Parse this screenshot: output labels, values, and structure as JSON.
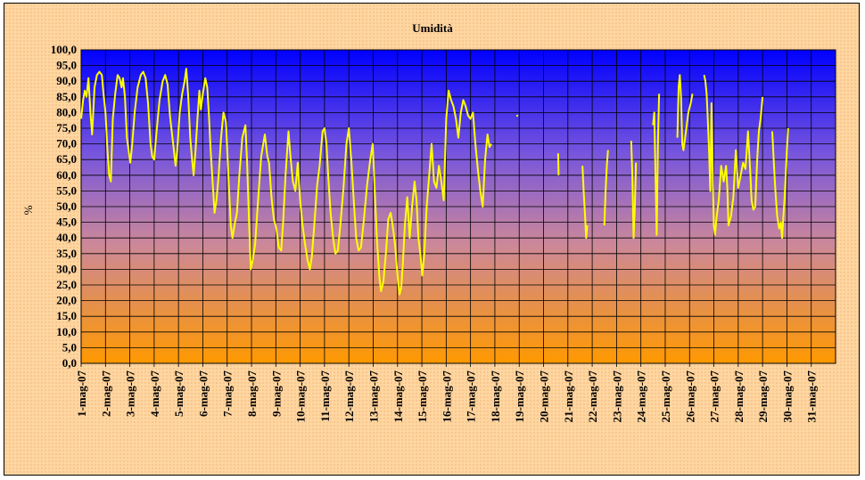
{
  "chart_data": {
    "type": "line",
    "title": "Umidità",
    "xlabel": "",
    "ylabel": "%",
    "ylim": [
      0,
      100
    ],
    "ytick_step": 5,
    "y_tick_labels": [
      "0,0",
      "5,0",
      "10,0",
      "15,0",
      "20,0",
      "25,0",
      "30,0",
      "35,0",
      "40,0",
      "45,0",
      "50,0",
      "55,0",
      "60,0",
      "65,0",
      "70,0",
      "75,0",
      "80,0",
      "85,0",
      "90,0",
      "95,0",
      "100,0"
    ],
    "categories": [
      "1-mag-07",
      "2-mag-07",
      "3-mag-07",
      "4-mag-07",
      "5-mag-07",
      "6-mag-07",
      "7-mag-07",
      "8-mag-07",
      "9-mag-07",
      "10-mag-07",
      "11-mag-07",
      "12-mag-07",
      "13-mag-07",
      "14-mag-07",
      "15-mag-07",
      "16-mag-07",
      "17-mag-07",
      "18-mag-07",
      "19-mag-07",
      "20-mag-07",
      "21-mag-07",
      "22-mag-07",
      "23-mag-07",
      "24-mag-07",
      "25-mag-07",
      "26-mag-07",
      "27-mag-07",
      "28-mag-07",
      "29-mag-07",
      "30-mag-07",
      "31-mag-07"
    ],
    "grid": true,
    "plot_background": "vertical gradient blue (top) to orange (bottom)",
    "colors": {
      "line": "#ffff00",
      "plot_top": "#0000ff",
      "plot_upper": "#7755dd",
      "plot_mid": "#cc8899",
      "plot_bottom": "#ff9900",
      "frame": "#ffd6a0",
      "grid": "#000000"
    },
    "series": [
      {
        "x_day_offset_and_value_segments": [
          [
            [
              0.0,
              78
            ],
            [
              0.08,
              84
            ],
            [
              0.15,
              87
            ],
            [
              0.22,
              85
            ],
            [
              0.3,
              91
            ],
            [
              0.38,
              80
            ],
            [
              0.45,
              73
            ],
            [
              0.55,
              88
            ],
            [
              0.65,
              92
            ],
            [
              0.75,
              93
            ],
            [
              0.85,
              92
            ],
            [
              0.92,
              86
            ],
            [
              1.0,
              80
            ],
            [
              1.08,
              68
            ],
            [
              1.15,
              60
            ],
            [
              1.22,
              58
            ],
            [
              1.3,
              78
            ],
            [
              1.4,
              86
            ],
            [
              1.5,
              92
            ],
            [
              1.58,
              91
            ],
            [
              1.66,
              88
            ],
            [
              1.72,
              91
            ],
            [
              1.8,
              85
            ],
            [
              1.88,
              72
            ],
            [
              1.95,
              68
            ],
            [
              2.02,
              64
            ],
            [
              2.1,
              70
            ],
            [
              2.2,
              80
            ],
            [
              2.32,
              88
            ],
            [
              2.45,
              92
            ],
            [
              2.55,
              93
            ],
            [
              2.65,
              91
            ],
            [
              2.75,
              83
            ],
            [
              2.85,
              70
            ],
            [
              2.92,
              66
            ],
            [
              3.0,
              65
            ],
            [
              3.1,
              74
            ],
            [
              3.22,
              84
            ],
            [
              3.35,
              90
            ],
            [
              3.45,
              92
            ],
            [
              3.55,
              89
            ],
            [
              3.65,
              79
            ],
            [
              3.78,
              70
            ],
            [
              3.88,
              63
            ],
            [
              3.95,
              68
            ],
            [
              4.05,
              80
            ],
            [
              4.15,
              86
            ],
            [
              4.25,
              90
            ],
            [
              4.32,
              94
            ],
            [
              4.4,
              85
            ],
            [
              4.48,
              72
            ],
            [
              4.56,
              65
            ],
            [
              4.62,
              60
            ],
            [
              4.7,
              68
            ],
            [
              4.78,
              78
            ],
            [
              4.86,
              87
            ],
            [
              4.92,
              81
            ],
            [
              5.0,
              86
            ],
            [
              5.1,
              91
            ],
            [
              5.18,
              88
            ],
            [
              5.25,
              79
            ],
            [
              5.32,
              68
            ],
            [
              5.4,
              58
            ],
            [
              5.48,
              48
            ],
            [
              5.56,
              52
            ],
            [
              5.65,
              60
            ],
            [
              5.75,
              72
            ],
            [
              5.85,
              80
            ],
            [
              5.95,
              77
            ],
            [
              6.05,
              60
            ],
            [
              6.15,
              44
            ],
            [
              6.22,
              40
            ],
            [
              6.3,
              44
            ],
            [
              6.4,
              48
            ],
            [
              6.5,
              60
            ],
            [
              6.62,
              72
            ],
            [
              6.75,
              76
            ],
            [
              6.82,
              64
            ],
            [
              6.9,
              45
            ],
            [
              6.97,
              30
            ],
            [
              7.05,
              33
            ],
            [
              7.15,
              38
            ],
            [
              7.25,
              50
            ],
            [
              7.4,
              66
            ],
            [
              7.55,
              73
            ],
            [
              7.65,
              66
            ],
            [
              7.72,
              64
            ],
            [
              7.82,
              53
            ],
            [
              7.92,
              46
            ],
            [
              8.02,
              43
            ],
            [
              8.12,
              37
            ],
            [
              8.22,
              36
            ],
            [
              8.3,
              45
            ],
            [
              8.4,
              60
            ],
            [
              8.52,
              74
            ],
            [
              8.6,
              66
            ],
            [
              8.7,
              58
            ],
            [
              8.8,
              55
            ],
            [
              8.9,
              64
            ],
            [
              9.0,
              52
            ],
            [
              9.1,
              44
            ],
            [
              9.2,
              38
            ],
            [
              9.3,
              33
            ],
            [
              9.4,
              30
            ],
            [
              9.48,
              34
            ],
            [
              9.58,
              44
            ],
            [
              9.7,
              57
            ],
            [
              9.8,
              63
            ],
            [
              9.92,
              74
            ],
            [
              10.0,
              75
            ],
            [
              10.08,
              70
            ],
            [
              10.15,
              60
            ],
            [
              10.25,
              48
            ],
            [
              10.35,
              40
            ],
            [
              10.45,
              35
            ],
            [
              10.55,
              36
            ],
            [
              10.65,
              44
            ],
            [
              10.78,
              56
            ],
            [
              10.9,
              70
            ],
            [
              11.0,
              75
            ],
            [
              11.1,
              65
            ],
            [
              11.2,
              52
            ],
            [
              11.3,
              40
            ],
            [
              11.4,
              36
            ],
            [
              11.5,
              37
            ],
            [
              11.62,
              46
            ],
            [
              11.75,
              57
            ],
            [
              11.88,
              65
            ],
            [
              11.98,
              70
            ],
            [
              12.05,
              58
            ],
            [
              12.15,
              40
            ],
            [
              12.25,
              28
            ],
            [
              12.32,
              23
            ],
            [
              12.42,
              26
            ],
            [
              12.52,
              35
            ],
            [
              12.62,
              46
            ],
            [
              12.72,
              48
            ],
            [
              12.8,
              44
            ],
            [
              12.9,
              38
            ],
            [
              13.0,
              28
            ],
            [
              13.08,
              22
            ],
            [
              13.15,
              24
            ],
            [
              13.22,
              32
            ],
            [
              13.3,
              44
            ],
            [
              13.4,
              53
            ],
            [
              13.5,
              40
            ],
            [
              13.6,
              50
            ],
            [
              13.7,
              58
            ],
            [
              13.78,
              52
            ],
            [
              13.86,
              40
            ],
            [
              13.95,
              34
            ],
            [
              14.02,
              28
            ],
            [
              14.1,
              35
            ],
            [
              14.2,
              50
            ],
            [
              14.3,
              60
            ],
            [
              14.4,
              70
            ],
            [
              14.5,
              58
            ],
            [
              14.6,
              56
            ],
            [
              14.7,
              63
            ],
            [
              14.8,
              58
            ],
            [
              14.9,
              52
            ],
            [
              15.0,
              78
            ],
            [
              15.1,
              87
            ],
            [
              15.2,
              84
            ],
            [
              15.3,
              82
            ],
            [
              15.4,
              78
            ],
            [
              15.5,
              72
            ],
            [
              15.6,
              80
            ],
            [
              15.7,
              84
            ],
            [
              15.8,
              82
            ],
            [
              15.9,
              79
            ],
            [
              16.0,
              78
            ],
            [
              16.1,
              80
            ],
            [
              16.2,
              70
            ],
            [
              16.3,
              62
            ],
            [
              16.4,
              55
            ],
            [
              16.5,
              50
            ],
            [
              16.6,
              65
            ],
            [
              16.7,
              73
            ],
            [
              16.78,
              69
            ],
            [
              16.86,
              70
            ]
          ],
          [
            [
              17.92,
              79
            ]
          ],
          [
            [
              19.6,
              67
            ],
            [
              19.62,
              60
            ]
          ],
          [
            [
              20.6,
              63
            ],
            [
              20.65,
              55
            ],
            [
              20.7,
              48
            ],
            [
              20.75,
              40
            ],
            [
              20.8,
              44
            ]
          ],
          [
            [
              21.5,
              44
            ],
            [
              21.55,
              55
            ],
            [
              21.6,
              63
            ],
            [
              21.65,
              68
            ]
          ],
          [
            [
              22.6,
              71
            ],
            [
              22.65,
              60
            ],
            [
              22.7,
              40
            ],
            [
              22.75,
              50
            ],
            [
              22.8,
              64
            ]
          ],
          [
            [
              23.5,
              76
            ],
            [
              23.55,
              80
            ],
            [
              23.6,
              60
            ],
            [
              23.65,
              41
            ],
            [
              23.7,
              70
            ],
            [
              23.75,
              86
            ]
          ],
          [
            [
              24.5,
              72
            ],
            [
              24.55,
              88
            ],
            [
              24.6,
              92
            ],
            [
              24.65,
              85
            ],
            [
              24.7,
              70
            ],
            [
              24.75,
              68
            ],
            [
              24.85,
              74
            ],
            [
              24.95,
              80
            ],
            [
              25.05,
              83
            ],
            [
              25.12,
              86
            ]
          ],
          [
            [
              25.6,
              92
            ],
            [
              25.65,
              90
            ],
            [
              25.7,
              86
            ],
            [
              25.75,
              78
            ],
            [
              25.8,
              68
            ],
            [
              25.85,
              55
            ],
            [
              25.9,
              83
            ],
            [
              25.95,
              62
            ],
            [
              26.0,
              44
            ],
            [
              26.05,
              41
            ],
            [
              26.1,
              46
            ],
            [
              26.2,
              52
            ],
            [
              26.3,
              63
            ],
            [
              26.4,
              58
            ],
            [
              26.5,
              63
            ],
            [
              26.55,
              56
            ],
            [
              26.6,
              44
            ],
            [
              26.7,
              47
            ],
            [
              26.8,
              53
            ],
            [
              26.9,
              68
            ],
            [
              27.0,
              56
            ],
            [
              27.1,
              60
            ],
            [
              27.2,
              64
            ],
            [
              27.3,
              62
            ],
            [
              27.4,
              74
            ],
            [
              27.5,
              60
            ],
            [
              27.55,
              52
            ],
            [
              27.62,
              49
            ],
            [
              27.7,
              50
            ],
            [
              27.78,
              65
            ],
            [
              27.85,
              74
            ],
            [
              27.92,
              78
            ],
            [
              28.0,
              85
            ]
          ],
          [
            [
              28.4,
              74
            ],
            [
              28.45,
              66
            ],
            [
              28.52,
              56
            ],
            [
              28.6,
              47
            ],
            [
              28.68,
              43
            ],
            [
              28.75,
              45
            ],
            [
              28.8,
              40
            ],
            [
              28.85,
              46
            ],
            [
              28.9,
              52
            ],
            [
              28.95,
              60
            ],
            [
              29.0,
              68
            ],
            [
              29.05,
              75
            ]
          ]
        ],
        "x_day_offset_note": "values keyed by day position on the axis (0 = 1-mag-07)"
      }
    ]
  }
}
